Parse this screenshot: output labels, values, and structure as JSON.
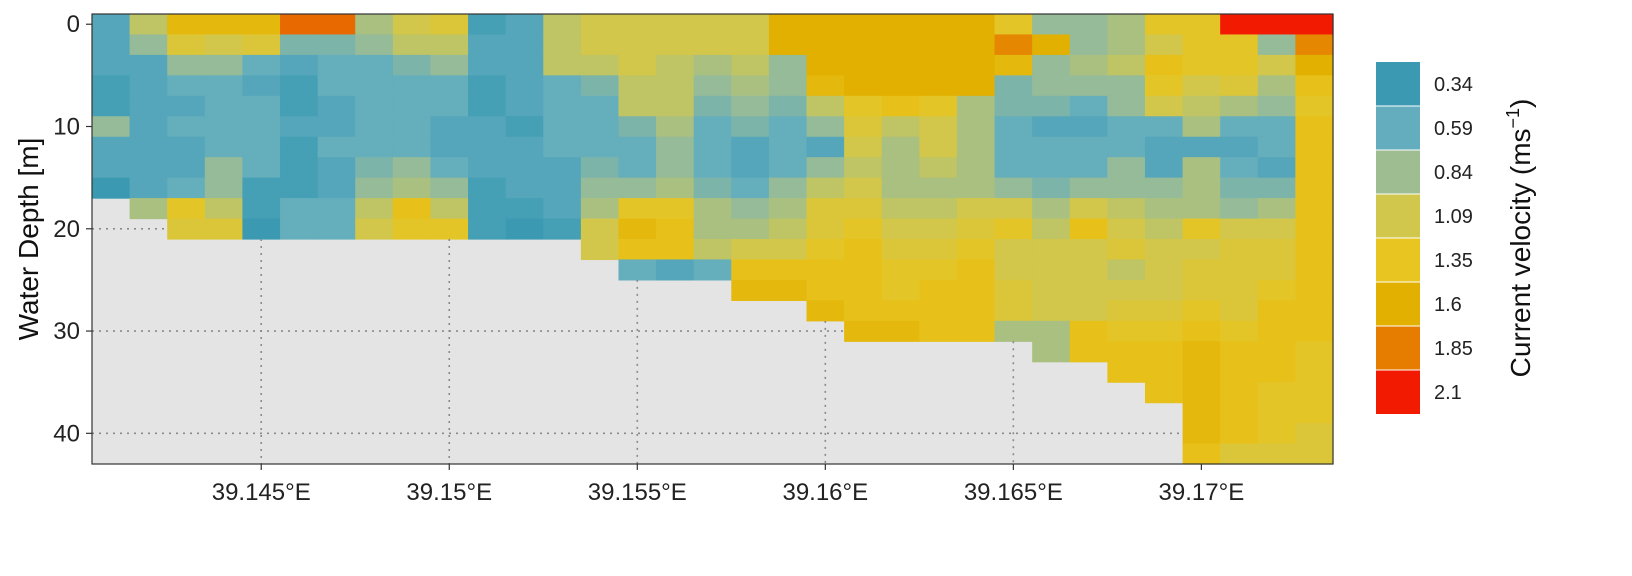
{
  "chart_data": {
    "type": "heatmap",
    "title": "",
    "xlabel": "",
    "ylabel": "Water Depth [m]",
    "xlim": [
      39.1405,
      39.1735
    ],
    "ylim": [
      43,
      -1
    ],
    "x_ticks": [
      39.145,
      39.15,
      39.155,
      39.16,
      39.165,
      39.17
    ],
    "x_tick_labels": [
      "39.145°E",
      "39.15°E",
      "39.155°E",
      "39.16°E",
      "39.165°E",
      "39.17°E"
    ],
    "y_ticks": [
      0,
      10,
      20,
      30,
      40
    ],
    "y_tick_labels": [
      "0",
      "10",
      "20",
      "30",
      "40"
    ],
    "grid": "dotted major grid lines over no-data area",
    "no_data_color": "#e4e4e4",
    "x": [
      39.141,
      39.142,
      39.143,
      39.144,
      39.145,
      39.146,
      39.147,
      39.148,
      39.149,
      39.15,
      39.151,
      39.152,
      39.153,
      39.154,
      39.155,
      39.156,
      39.157,
      39.158,
      39.159,
      39.16,
      39.161,
      39.162,
      39.163,
      39.164,
      39.165,
      39.166,
      39.167,
      39.168,
      39.169,
      39.17,
      39.171,
      39.172,
      39.173
    ],
    "depth": [
      0,
      2,
      4,
      6,
      8,
      10,
      12,
      14,
      16,
      18,
      20,
      22,
      24,
      26,
      28,
      30,
      32,
      34,
      36,
      38,
      40,
      42
    ],
    "bottom_depth": [
      17,
      19,
      21,
      21,
      21,
      21,
      21,
      21,
      21,
      21,
      21,
      21,
      21,
      23,
      25,
      25,
      25,
      27,
      27,
      29,
      31,
      31,
      31,
      31,
      31,
      33,
      33,
      35,
      37,
      43,
      43,
      43,
      43
    ],
    "velocity_grid": [
      [
        0.5,
        0.5,
        0.5,
        0.4,
        0.4,
        0.8,
        0.5,
        0.5,
        0.3,
        0.9
      ],
      [
        1.0,
        0.8,
        0.5,
        0.5,
        0.5,
        0.5,
        0.5,
        0.5,
        0.5,
        0.9,
        1.3
      ],
      [
        1.5,
        1.2,
        0.8,
        0.6,
        0.5,
        0.6,
        0.5,
        0.5,
        0.6,
        1.3,
        1.2,
        1.3
      ],
      [
        1.5,
        1.1,
        0.8,
        0.6,
        0.6,
        0.6,
        0.6,
        0.8,
        0.8,
        1.0,
        1.2,
        1.3
      ],
      [
        1.5,
        1.2,
        0.6,
        0.5,
        0.6,
        0.6,
        0.6,
        0.6,
        0.4,
        0.4,
        0.3,
        0.5
      ],
      [
        1.9,
        0.7,
        0.5,
        0.4,
        0.4,
        0.5,
        0.4,
        0.4,
        0.4,
        0.6,
        0.6,
        0.5
      ],
      [
        1.9,
        0.7,
        0.6,
        0.6,
        0.5,
        0.5,
        0.6,
        0.5,
        0.5,
        0.6,
        0.6,
        0.9
      ],
      [
        0.9,
        0.8,
        0.6,
        0.6,
        0.6,
        0.6,
        0.6,
        0.7,
        0.8,
        1.0,
        1.1,
        1.0
      ],
      [
        1.1,
        1.0,
        0.7,
        0.6,
        0.6,
        0.6,
        0.6,
        0.8,
        0.9,
        1.4,
        1.3,
        1.1
      ],
      [
        1.2,
        1.0,
        0.8,
        0.6,
        0.6,
        0.5,
        0.5,
        0.6,
        0.8,
        1.0,
        1.3,
        1.0
      ],
      [
        0.4,
        0.5,
        0.5,
        0.4,
        0.4,
        0.5,
        0.5,
        0.5,
        0.4,
        0.4,
        0.4,
        0.4
      ],
      [
        0.5,
        0.5,
        0.5,
        0.5,
        0.5,
        0.4,
        0.5,
        0.5,
        0.5,
        0.4,
        0.3,
        0.4
      ],
      [
        1.0,
        1.0,
        1.0,
        0.6,
        0.6,
        0.6,
        0.6,
        0.5,
        0.5,
        0.5,
        0.4,
        0.4
      ],
      [
        1.1,
        1.1,
        1.0,
        0.7,
        0.6,
        0.6,
        0.6,
        0.7,
        0.8,
        0.9,
        1.1,
        1.1,
        0.5
      ],
      [
        1.1,
        1.1,
        1.1,
        1.0,
        1.0,
        0.7,
        0.6,
        0.6,
        0.8,
        1.3,
        1.5,
        1.4,
        0.6,
        0.5,
        0.5
      ],
      [
        1.1,
        1.1,
        1.0,
        1.0,
        1.0,
        0.9,
        0.8,
        0.8,
        0.9,
        1.3,
        1.4,
        1.4,
        0.5,
        0.5,
        0.5
      ],
      [
        1.1,
        1.1,
        0.9,
        0.8,
        0.7,
        0.6,
        0.6,
        0.6,
        0.7,
        0.9,
        0.9,
        1.0,
        0.6,
        0.5,
        0.6,
        1.4,
        1.4
      ],
      [
        1.1,
        1.1,
        1.0,
        0.9,
        0.8,
        0.7,
        0.5,
        0.5,
        0.6,
        0.8,
        0.9,
        1.1,
        1.4,
        1.5,
        1.5,
        1.5,
        1.4
      ],
      [
        1.6,
        1.6,
        0.8,
        0.8,
        0.7,
        0.6,
        0.6,
        0.6,
        0.8,
        0.9,
        1.0,
        1.1,
        1.4,
        1.5,
        1.6,
        1.5,
        1.5,
        1.6,
        1.5
      ],
      [
        1.6,
        1.6,
        1.6,
        1.5,
        1.0,
        0.8,
        0.5,
        0.8,
        1.0,
        1.2,
        1.2,
        1.3,
        1.4,
        1.4,
        1.5,
        1.4,
        1.4,
        1.4,
        1.4,
        1.5
      ],
      [
        1.6,
        1.6,
        1.6,
        1.6,
        1.3,
        1.2,
        1.1,
        1.0,
        1.1,
        1.2,
        1.3,
        1.4,
        1.4,
        1.4,
        1.4,
        1.5,
        1.5,
        1.4,
        1.4,
        1.4,
        1.4
      ],
      [
        1.6,
        1.6,
        1.6,
        1.6,
        1.4,
        1.0,
        0.9,
        0.9,
        0.9,
        1.0,
        1.1,
        1.2,
        1.3,
        1.3,
        1.4,
        1.5,
        1.4,
        1.4,
        1.4,
        1.4,
        1.4
      ],
      [
        1.6,
        1.6,
        1.6,
        1.6,
        1.3,
        1.1,
        1.1,
        1.0,
        0.9,
        1.0,
        1.1,
        1.2,
        1.3,
        1.4,
        1.4,
        1.4,
        1.4,
        1.4,
        1.4,
        1.4,
        1.4
      ],
      [
        1.6,
        1.6,
        1.6,
        1.6,
        0.9,
        0.9,
        0.9,
        0.9,
        0.9,
        1.1,
        1.2,
        1.3,
        1.4,
        1.4,
        1.4,
        1.4,
        1.4,
        1.4,
        1.4,
        1.4,
        1.4
      ],
      [
        1.3,
        1.8,
        1.5,
        0.7,
        0.7,
        0.6,
        0.6,
        0.6,
        0.8,
        1.1,
        1.3,
        1.1,
        1.1,
        1.2,
        1.2,
        0.9,
        0.9,
        0.9,
        0.9,
        0.9,
        0.9
      ],
      [
        0.8,
        1.6,
        0.8,
        0.8,
        0.7,
        0.5,
        0.6,
        0.6,
        0.7,
        0.9,
        1.0,
        1.1,
        1.1,
        1.1,
        1.1,
        0.9,
        0.9,
        0.9,
        0.8,
        0.8,
        0.8
      ],
      [
        0.8,
        0.8,
        0.9,
        0.8,
        0.6,
        0.5,
        0.6,
        0.6,
        0.8,
        1.1,
        1.4,
        1.1,
        1.1,
        1.1,
        1.1,
        1.4,
        1.4,
        1.4,
        1.4,
        1.4,
        1.4
      ],
      [
        0.9,
        0.9,
        1.0,
        0.8,
        0.8,
        0.6,
        0.6,
        0.8,
        0.8,
        1.0,
        1.1,
        1.2,
        1.0,
        1.1,
        1.2,
        1.3,
        1.4,
        1.4,
        1.4,
        1.4,
        1.4,
        1.4
      ],
      [
        1.3,
        1.1,
        1.4,
        1.3,
        1.1,
        0.6,
        0.5,
        0.5,
        0.8,
        0.9,
        1.0,
        1.1,
        1.1,
        1.1,
        1.2,
        1.3,
        1.4,
        1.4,
        1.4,
        1.4,
        1.4,
        1.4
      ],
      [
        1.3,
        1.3,
        1.3,
        1.1,
        1.0,
        0.9,
        0.5,
        0.9,
        0.9,
        0.9,
        1.3,
        1.1,
        1.2,
        1.2,
        1.3,
        1.4,
        1.5,
        1.5,
        1.5,
        1.5,
        1.5,
        1.4
      ],
      [
        2.1,
        1.3,
        1.3,
        1.2,
        0.9,
        0.6,
        0.5,
        0.6,
        0.7,
        0.8,
        1.1,
        1.2,
        1.2,
        1.2,
        1.2,
        1.3,
        1.4,
        1.4,
        1.4,
        1.4,
        1.4,
        1.2
      ],
      [
        2.1,
        0.8,
        1.1,
        0.9,
        0.8,
        0.6,
        0.6,
        0.5,
        0.7,
        0.9,
        1.1,
        1.2,
        1.2,
        1.3,
        1.4,
        1.4,
        1.4,
        1.4,
        1.3,
        1.3,
        1.3,
        1.2
      ],
      [
        2.1,
        1.8,
        1.6,
        1.4,
        1.3,
        1.4,
        1.4,
        1.4,
        1.4,
        1.4,
        1.4,
        1.4,
        1.4,
        1.4,
        1.4,
        1.4,
        1.3,
        1.3,
        1.3,
        1.3,
        1.2,
        1.2
      ]
    ],
    "legend": {
      "title": "Current velocity (ms",
      "title_superscript": "−1",
      "title_suffix": ")",
      "breaks": [
        0.34,
        0.59,
        0.84,
        1.09,
        1.35,
        1.6,
        1.85,
        2.1
      ],
      "labels": [
        "0.34",
        "0.59",
        "0.84",
        "1.09",
        "1.35",
        "1.6",
        "1.85",
        "2.1"
      ],
      "colors": [
        "#3b9ab2",
        "#63adbe",
        "#9ebe91",
        "#d1c74c",
        "#e8c520",
        "#e2b000",
        "#e67d00",
        "#f21a00"
      ]
    }
  }
}
